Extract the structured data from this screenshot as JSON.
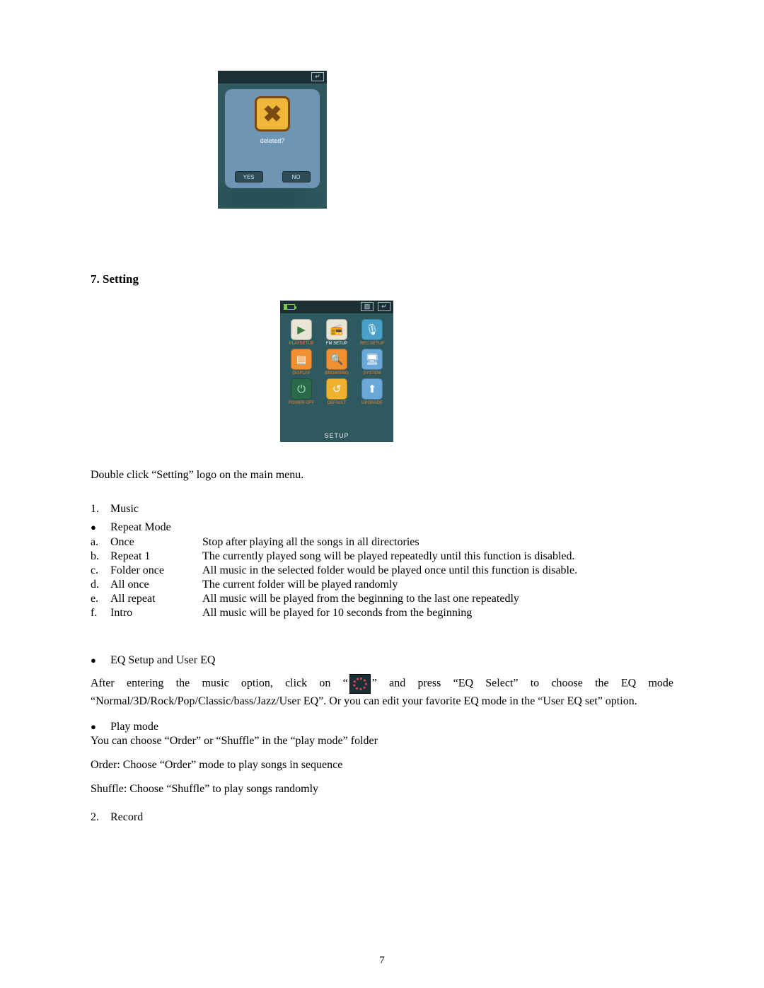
{
  "shot1": {
    "dialog_text": "deleted?",
    "yes": "YES",
    "no": "NO",
    "back_arrow": "↵",
    "colors": {
      "device_bg": "#2e5a5f",
      "topbar": "#1b2f34",
      "dialog_bg": "#6e95b4",
      "icon_fill": "#f0b63a",
      "icon_border": "#7a4a10",
      "btn_bg": "#2d4a55"
    }
  },
  "heading": "7. Setting",
  "shot2": {
    "footer": "SETUP",
    "top_icon_a": "▧",
    "top_icon_b": "↵",
    "cells": [
      {
        "label": "PLAYSETUP",
        "glyph": "▶",
        "bg": "#e8e4d6",
        "fg": "#3a7a3a",
        "selected": false
      },
      {
        "label": "FM SETUP",
        "glyph": "📻",
        "bg": "#e8e4d6",
        "fg": "#2a8a4a",
        "selected": true
      },
      {
        "label": "REC.SETUP",
        "glyph": "🎙",
        "bg": "#4aa0c8",
        "fg": "#ffffff",
        "selected": false
      },
      {
        "label": "DISPLAY",
        "glyph": "▤",
        "bg": "#f09030",
        "fg": "#ffffff",
        "selected": false
      },
      {
        "label": "BROWSING",
        "glyph": "🔍",
        "bg": "#f09030",
        "fg": "#ffffff",
        "selected": false
      },
      {
        "label": "SYSTEM",
        "glyph": "🖥",
        "bg": "#6aa8d8",
        "fg": "#ffffff",
        "selected": false
      },
      {
        "label": "POWER OFF",
        "glyph": "⏻",
        "bg": "#2a6a4a",
        "fg": "#a8e8b8",
        "selected": false
      },
      {
        "label": "DEFAULT",
        "glyph": "↺",
        "bg": "#f0b030",
        "fg": "#ffffff",
        "selected": false
      },
      {
        "label": "UPGRADE",
        "glyph": "⬆",
        "bg": "#6aa8d8",
        "fg": "#ffffff",
        "selected": false
      }
    ]
  },
  "intro": "Double click “Setting” logo on the main menu.",
  "item1": {
    "num": "1.",
    "label": "Music"
  },
  "bullet_repeat": "Repeat Mode",
  "repeat_rows": [
    {
      "k": "a.",
      "name": "Once",
      "desc": "Stop after playing all the songs in all directories"
    },
    {
      "k": "b.",
      "name": "Repeat 1",
      "desc": "The currently played song will be played repeatedly until this function is disabled."
    },
    {
      "k": "c.",
      "name": "Folder once",
      "desc": "All music in the selected folder would be played once until this function is disable."
    },
    {
      "k": "d.",
      "name": "All once",
      "desc": "The current folder will be played randomly"
    },
    {
      "k": "e.",
      "name": "All repeat",
      "desc": "All music will be played from the beginning to the last one repeatedly"
    },
    {
      "k": "f.",
      "name": "Intro",
      "desc": "All music will be played for 10 seconds from the beginning"
    }
  ],
  "bullet_eq": "EQ Setup and User EQ",
  "eq_text_before": "After entering the music option, click on “",
  "eq_text_after": "” and press “EQ Select” to choose the EQ mode “Normal/3D/Rock/Pop/Classic/bass/Jazz/User EQ”. Or you can edit your favorite EQ mode in the “User EQ set” option.",
  "bullet_play": "Play mode",
  "play_lines": [
    "You can choose “Order” or “Shuffle” in the “play mode” folder",
    "Order: Choose “Order” mode to play songs in sequence",
    "Shuffle: Choose “Shuffle” to play songs randomly"
  ],
  "item2": {
    "num": "2.",
    "label": "Record"
  },
  "page_number": "7"
}
